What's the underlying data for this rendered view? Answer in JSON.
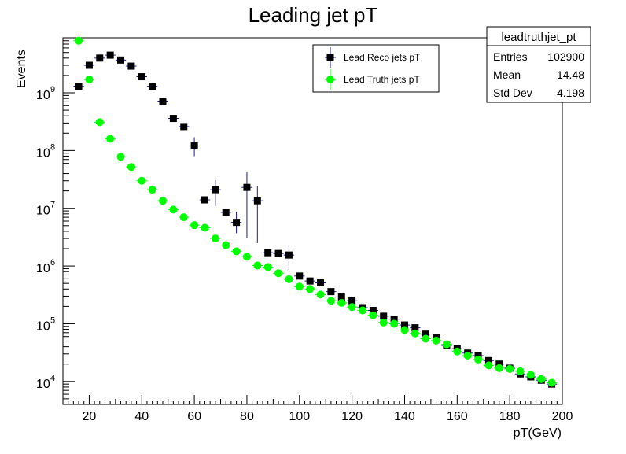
{
  "chart_data": {
    "type": "scatter",
    "title": "Leading jet pT",
    "xlabel": "pT(GeV)",
    "ylabel": "Events",
    "xlim": [
      10,
      200
    ],
    "ylim": [
      4000,
      9000000000
    ],
    "log_y": true,
    "grid": false,
    "x_ticks": [
      "20",
      "40",
      "60",
      "80",
      "100",
      "120",
      "140",
      "160",
      "180",
      "200"
    ],
    "y_ticks": [
      {
        "base": "10",
        "exp": "4"
      },
      {
        "base": "10",
        "exp": "5"
      },
      {
        "base": "10",
        "exp": "6"
      },
      {
        "base": "10",
        "exp": "7"
      },
      {
        "base": "10",
        "exp": "8"
      },
      {
        "base": "10",
        "exp": "9"
      }
    ],
    "legend_position": "top-center",
    "series": [
      {
        "name": "Lead Reco jets pT",
        "color": "#000000",
        "err_color": "#1a1aa0",
        "marker": "square",
        "x": [
          16,
          20,
          24,
          28,
          32,
          36,
          40,
          44,
          48,
          52,
          56,
          60,
          64,
          68,
          72,
          76,
          80,
          84,
          88,
          92,
          96,
          100,
          104,
          108,
          112,
          116,
          120,
          124,
          128,
          132,
          136,
          140,
          144,
          148,
          152,
          156,
          160,
          164,
          168,
          172,
          176,
          180,
          184,
          188,
          192,
          196
        ],
        "y": [
          1300000000,
          3000000000,
          4000000000,
          4500000000,
          3700000000,
          2900000000,
          1900000000,
          1300000000,
          720000000,
          360000000,
          260000000,
          120000000,
          14000000,
          21000000,
          8500000,
          5700000,
          23000000,
          13500000,
          1700000,
          1650000,
          1550000,
          670000,
          550000,
          510000,
          360000,
          290000,
          250000,
          190000,
          170000,
          135000,
          120000,
          95000,
          85000,
          66000,
          57000,
          42000,
          37000,
          31000,
          28000,
          23000,
          20000,
          17000,
          13500,
          12000,
          10500,
          9000
        ],
        "yerr_low": [
          0,
          0,
          0,
          0,
          0,
          0,
          0,
          0,
          0,
          0,
          0,
          40000000,
          0,
          10000000,
          0,
          2000000,
          20000000,
          11000000,
          0,
          0,
          700000,
          0,
          0,
          0,
          0,
          0,
          0,
          0,
          0,
          0,
          0,
          0,
          0,
          0,
          0,
          0,
          0,
          0,
          0,
          0,
          0,
          0,
          0,
          0,
          0,
          0
        ],
        "yerr_high": [
          0,
          0,
          0,
          0,
          0,
          0,
          0,
          0,
          0,
          0,
          0,
          50000000,
          0,
          10000000,
          0,
          3000000,
          20000000,
          11000000,
          0,
          0,
          700000,
          0,
          0,
          0,
          0,
          0,
          0,
          0,
          0,
          0,
          0,
          0,
          0,
          0,
          0,
          0,
          0,
          0,
          0,
          0,
          0,
          0,
          0,
          0,
          0,
          0
        ]
      },
      {
        "name": "Lead Truth jets pT",
        "color": "#00ff00",
        "err_color": "#00ff00",
        "marker": "circle",
        "x": [
          16,
          20,
          24,
          28,
          32,
          36,
          40,
          44,
          48,
          52,
          56,
          60,
          64,
          68,
          72,
          76,
          80,
          84,
          88,
          92,
          96,
          100,
          104,
          108,
          112,
          116,
          120,
          124,
          128,
          132,
          136,
          140,
          144,
          148,
          152,
          156,
          160,
          164,
          168,
          172,
          176,
          180,
          184,
          188,
          192,
          196
        ],
        "y": [
          8000000000,
          1700000000,
          310000000,
          160000000,
          78000000,
          52000000,
          30000000,
          21000000,
          13500000,
          9500000,
          7000000,
          5100000,
          4600000,
          3000000,
          2300000,
          1800000,
          1450000,
          1020000,
          960000,
          750000,
          590000,
          440000,
          400000,
          320000,
          250000,
          230000,
          195000,
          170000,
          140000,
          105000,
          100000,
          78000,
          68000,
          55000,
          51000,
          44000,
          33000,
          28000,
          24000,
          19000,
          17000,
          16500,
          15000,
          13000,
          11000,
          9500
        ],
        "yerr_low": [],
        "yerr_high": []
      }
    ]
  },
  "stats_box": {
    "title": "leadtruthjet_pt",
    "rows": [
      {
        "label": "Entries",
        "value": "102900"
      },
      {
        "label": "Mean",
        "value": "14.48"
      },
      {
        "label": "Std Dev",
        "value": "4.198"
      }
    ]
  }
}
